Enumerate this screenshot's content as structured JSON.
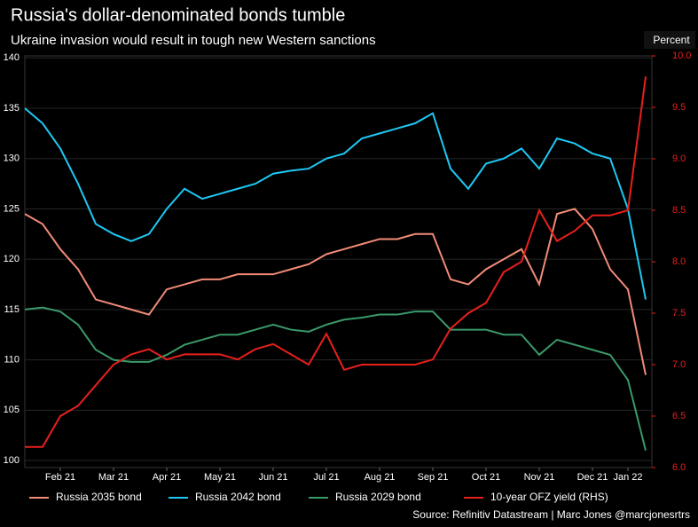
{
  "chart_data": {
    "type": "line",
    "title": "Russia's dollar-denominated bonds tumble",
    "subtitle": "Ukraine invasion would result in tough new Western sanctions",
    "y2_label": "Percent",
    "source": "Source: Refinitiv Datastream | Marc Jones @marcjonesrtrs",
    "categories": [
      null,
      null,
      "Feb 21",
      null,
      null,
      "Mar 21",
      null,
      null,
      "Apr 21",
      null,
      null,
      "May 21",
      null,
      null,
      "Jun 21",
      null,
      null,
      "Jul 21",
      null,
      null,
      "Aug 21",
      null,
      null,
      "Sep 21",
      null,
      null,
      "Oct 21",
      null,
      null,
      "Nov 21",
      null,
      null,
      "Dec 21",
      null,
      "Jan 22",
      null
    ],
    "ylim": [
      99.3,
      140.2
    ],
    "yticks": [
      100,
      105,
      110,
      115,
      120,
      125,
      130,
      135,
      140
    ],
    "y2lim": [
      6,
      10
    ],
    "y2ticks": [
      {
        "value": 6,
        "label": "6.0"
      },
      {
        "value": 6.5,
        "label": "6.5"
      },
      {
        "value": 7,
        "label": "7.0"
      },
      {
        "value": 7.5,
        "label": "7.5"
      },
      {
        "value": 8,
        "label": "8.0"
      },
      {
        "value": 8.5,
        "label": "8.5"
      },
      {
        "value": 9,
        "label": "9.0"
      },
      {
        "value": 9.5,
        "label": "9.5"
      },
      {
        "value": 10,
        "label": "10.0"
      }
    ],
    "grid": true,
    "series": [
      {
        "name": "Russia 2035 bond",
        "color": "#f28b78",
        "values": [
          124.5,
          123.5,
          121,
          119,
          116,
          115.5,
          115,
          114.5,
          117,
          117.5,
          118,
          118,
          118.5,
          118.5,
          118.5,
          119,
          119.5,
          120.5,
          121,
          121.5,
          122,
          122,
          122.5,
          122.5,
          118,
          117.5,
          119,
          120,
          121,
          117.5,
          124.5,
          125,
          123,
          119,
          117,
          108.5
        ]
      },
      {
        "name": "Russia 2042 bond",
        "color": "#1ec8f4",
        "values": [
          135,
          133.5,
          131,
          127.5,
          123.5,
          122.5,
          121.8,
          122.5,
          125,
          127,
          126,
          126.5,
          127,
          127.5,
          128.5,
          128.8,
          129,
          130,
          130.5,
          132,
          132.5,
          133,
          133.5,
          134.5,
          129,
          127,
          129.5,
          130,
          131,
          129,
          132,
          131.5,
          130.5,
          130,
          125,
          116
        ]
      },
      {
        "name": "Russia 2029 bond",
        "color": "#3a9a6a",
        "values": [
          115,
          115.2,
          114.8,
          113.5,
          111,
          110,
          109.8,
          109.8,
          110.5,
          111.5,
          112,
          112.5,
          112.5,
          113,
          113.5,
          113,
          112.8,
          113.5,
          114,
          114.2,
          114.5,
          114.5,
          114.8,
          114.8,
          113,
          113,
          113,
          112.5,
          112.5,
          110.5,
          112,
          111.5,
          111,
          110.5,
          108,
          101
        ]
      },
      {
        "name": "10-year OFZ yield (RHS)",
        "color": "#e8201c",
        "axis": "y2",
        "values": [
          6.2,
          6.2,
          6.5,
          6.6,
          6.8,
          7.0,
          7.1,
          7.15,
          7.05,
          7.1,
          7.1,
          7.1,
          7.05,
          7.15,
          7.2,
          7.1,
          7.0,
          7.3,
          6.95,
          7.0,
          7.0,
          7.0,
          7.0,
          7.05,
          7.35,
          7.5,
          7.6,
          7.9,
          8.0,
          8.5,
          8.2,
          8.3,
          8.45,
          8.45,
          8.5,
          9.8
        ]
      }
    ]
  }
}
